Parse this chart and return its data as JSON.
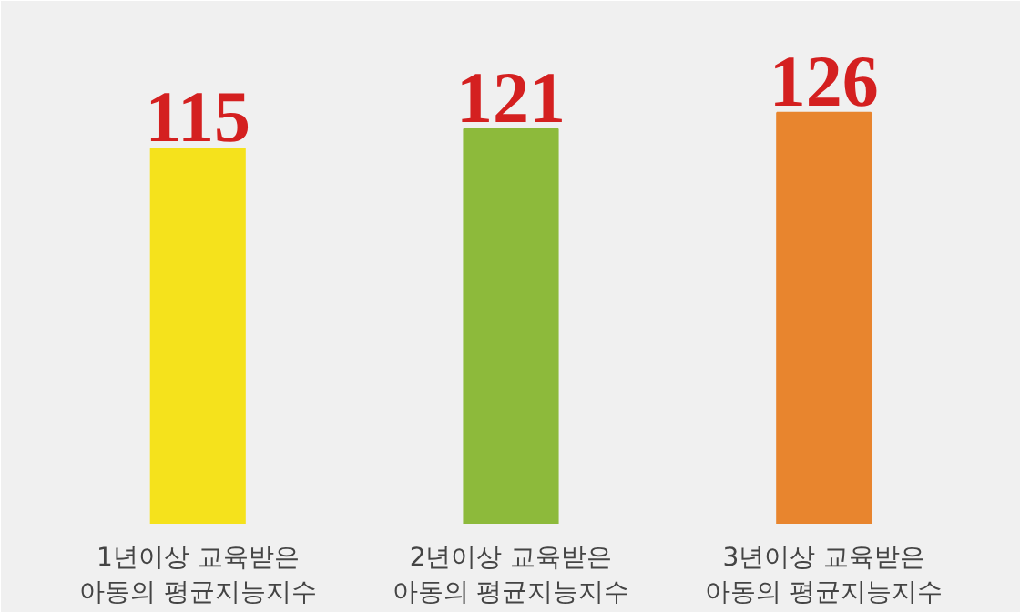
{
  "chart_data": {
    "type": "bar",
    "categories": [
      "1년이상 교육받은\n아동의 평균지능지수",
      "2년이상 교육받은\n아동의 평균지능지수",
      "3년이상 교육받은\n아동의 평균지능지수"
    ],
    "values": [
      115,
      121,
      126
    ],
    "colors": [
      "#f5e21c",
      "#8dba3b",
      "#e8852e"
    ],
    "data_labels": true
  }
}
